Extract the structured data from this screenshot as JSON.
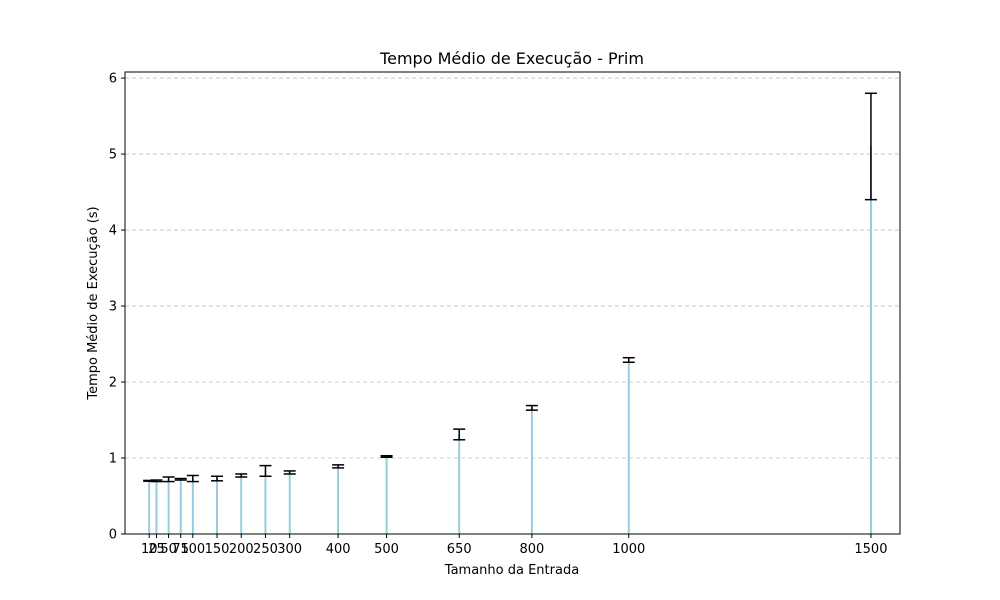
{
  "chart_data": {
    "type": "bar",
    "title": "Tempo Médio de Execução - Prim",
    "xlabel": "Tamanho da Entrada",
    "ylabel": "Tempo Médio de Execução (s)",
    "x": [
      10,
      25,
      50,
      75,
      100,
      150,
      200,
      250,
      300,
      400,
      500,
      650,
      800,
      1000,
      1500
    ],
    "x_tick_labels": [
      "10",
      "25",
      "50",
      "75",
      "100",
      "150",
      "200",
      "250",
      "300",
      "400",
      "500",
      "650",
      "800",
      "1000",
      "1500"
    ],
    "values": [
      0.7,
      0.7,
      0.72,
      0.72,
      0.73,
      0.73,
      0.77,
      0.83,
      0.81,
      0.89,
      1.02,
      1.31,
      1.66,
      2.29,
      5.1
    ],
    "error": [
      0.005,
      0.01,
      0.03,
      0.01,
      0.04,
      0.03,
      0.02,
      0.07,
      0.02,
      0.02,
      0.01,
      0.07,
      0.03,
      0.03,
      0.7
    ],
    "xlim": [
      -40,
      1560
    ],
    "ylim": [
      0,
      6.08
    ],
    "y_ticks": [
      0,
      1,
      2,
      3,
      4,
      5,
      6
    ],
    "y_tick_labels": [
      "0",
      "1",
      "2",
      "3",
      "4",
      "5",
      "6"
    ],
    "grid": "y-dashed",
    "bar_color": "#a9d4e6",
    "error_color": "#000000"
  }
}
